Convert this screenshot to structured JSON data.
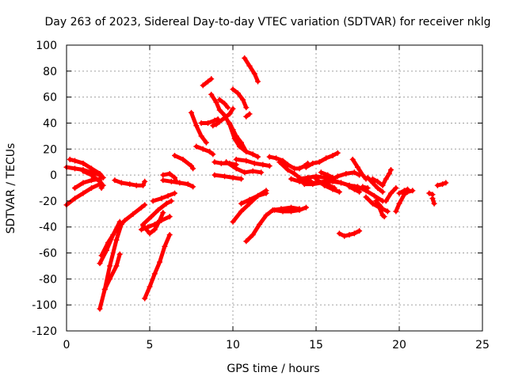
{
  "chart_data": {
    "type": "scatter",
    "title": "Day 263 of 2023, Sidereal Day-to-day VTEC variation (SDTVAR) for receiver nklg",
    "xlabel": "GPS time / hours",
    "ylabel": "SDTVAR / TECUs",
    "xlim": [
      0,
      25
    ],
    "ylim": [
      -120,
      100
    ],
    "xticks": [
      0,
      5,
      10,
      15,
      20,
      25
    ],
    "yticks": [
      -120,
      -100,
      -80,
      -60,
      -40,
      -20,
      0,
      20,
      40,
      60,
      80,
      100
    ],
    "xtick_labels": [
      "0",
      "5",
      "10",
      "15",
      "20",
      "25"
    ],
    "ytick_labels": [
      "-120",
      "-100",
      "-80",
      "-60",
      "-40",
      "-20",
      "0",
      "20",
      "40",
      "60",
      "80",
      "100"
    ],
    "grid": true,
    "legend": "none",
    "marker": "plus",
    "color": "#ff0000",
    "tracks": [
      [
        [
          0.0,
          6
        ],
        [
          0.5,
          5
        ],
        [
          1.0,
          4
        ],
        [
          1.5,
          2
        ],
        [
          2.0,
          0
        ]
      ],
      [
        [
          0.2,
          12
        ],
        [
          0.5,
          11
        ],
        [
          1.0,
          9
        ],
        [
          1.5,
          5
        ],
        [
          2.0,
          1
        ],
        [
          2.2,
          -2
        ]
      ],
      [
        [
          0.0,
          -23
        ],
        [
          0.5,
          -18
        ],
        [
          1.0,
          -14
        ],
        [
          1.5,
          -10
        ],
        [
          2.0,
          -7
        ]
      ],
      [
        [
          0.5,
          -10
        ],
        [
          1.0,
          -6
        ],
        [
          1.5,
          -4
        ],
        [
          2.0,
          -3
        ],
        [
          2.1,
          -10
        ]
      ],
      [
        [
          1.0,
          3
        ],
        [
          1.5,
          0
        ],
        [
          2.0,
          -5
        ],
        [
          2.2,
          -8
        ]
      ],
      [
        [
          2.0,
          -103
        ],
        [
          2.3,
          -88
        ],
        [
          2.6,
          -70
        ],
        [
          3.0,
          -50
        ],
        [
          3.3,
          -38
        ]
      ],
      [
        [
          2.0,
          -68
        ],
        [
          2.4,
          -58
        ],
        [
          2.8,
          -46
        ],
        [
          3.2,
          -36
        ]
      ],
      [
        [
          2.1,
          -62
        ],
        [
          2.5,
          -52
        ],
        [
          3.0,
          -42
        ],
        [
          3.5,
          -35
        ],
        [
          4.0,
          -30
        ],
        [
          4.5,
          -25
        ],
        [
          4.7,
          -23
        ]
      ],
      [
        [
          2.3,
          -88
        ],
        [
          2.6,
          -80
        ],
        [
          3.0,
          -70
        ],
        [
          3.2,
          -61
        ]
      ],
      [
        [
          2.9,
          -4
        ],
        [
          3.3,
          -6
        ],
        [
          3.8,
          -7
        ],
        [
          4.2,
          -8
        ],
        [
          4.6,
          -8
        ],
        [
          4.7,
          -5
        ]
      ],
      [
        [
          4.5,
          -42
        ],
        [
          4.9,
          -40
        ],
        [
          5.3,
          -38
        ],
        [
          5.7,
          -35
        ],
        [
          6.2,
          -32
        ]
      ],
      [
        [
          4.7,
          -95
        ],
        [
          5.0,
          -86
        ],
        [
          5.3,
          -76
        ],
        [
          5.6,
          -67
        ],
        [
          5.9,
          -55
        ],
        [
          6.2,
          -46
        ]
      ],
      [
        [
          4.6,
          -38
        ],
        [
          5.1,
          -32
        ],
        [
          5.5,
          -27
        ],
        [
          6.0,
          -22
        ],
        [
          6.3,
          -20
        ]
      ],
      [
        [
          4.6,
          -39
        ],
        [
          5.0,
          -45
        ],
        [
          5.3,
          -42
        ],
        [
          5.6,
          -35
        ],
        [
          5.8,
          -29
        ]
      ],
      [
        [
          5.2,
          -20
        ],
        [
          5.7,
          -18
        ],
        [
          6.1,
          -16
        ],
        [
          6.5,
          -14
        ]
      ],
      [
        [
          5.8,
          -4
        ],
        [
          6.3,
          -5
        ],
        [
          6.8,
          -6
        ],
        [
          7.3,
          -7
        ],
        [
          7.6,
          -9
        ]
      ],
      [
        [
          5.8,
          0
        ],
        [
          6.2,
          1
        ],
        [
          6.5,
          -2
        ],
        [
          6.6,
          -5
        ]
      ],
      [
        [
          6.5,
          15
        ],
        [
          7.0,
          12
        ],
        [
          7.5,
          7
        ],
        [
          7.6,
          5
        ]
      ],
      [
        [
          7.5,
          48
        ],
        [
          7.8,
          38
        ],
        [
          8.1,
          30
        ],
        [
          8.4,
          25
        ]
      ],
      [
        [
          7.8,
          22
        ],
        [
          8.2,
          20
        ],
        [
          8.6,
          18
        ],
        [
          8.8,
          16
        ]
      ],
      [
        [
          8.1,
          40
        ],
        [
          8.5,
          40
        ],
        [
          8.9,
          42
        ],
        [
          9.1,
          43
        ]
      ],
      [
        [
          8.2,
          69
        ],
        [
          8.5,
          72
        ],
        [
          8.7,
          74
        ]
      ],
      [
        [
          8.7,
          62
        ],
        [
          9.0,
          56
        ],
        [
          9.2,
          50
        ],
        [
          9.5,
          46
        ],
        [
          9.8,
          39
        ],
        [
          10.1,
          28
        ],
        [
          10.4,
          22
        ],
        [
          10.8,
          18
        ],
        [
          11.2,
          16
        ],
        [
          11.5,
          14
        ]
      ],
      [
        [
          8.8,
          38
        ],
        [
          9.0,
          39
        ],
        [
          9.2,
          41
        ],
        [
          9.5,
          44
        ],
        [
          9.8,
          47
        ],
        [
          10.0,
          51
        ]
      ],
      [
        [
          9.2,
          58
        ],
        [
          9.5,
          55
        ],
        [
          9.7,
          52
        ]
      ],
      [
        [
          9.8,
          40
        ],
        [
          10.0,
          35
        ],
        [
          10.2,
          30
        ],
        [
          10.5,
          25
        ],
        [
          10.8,
          18
        ]
      ],
      [
        [
          8.9,
          10
        ],
        [
          9.3,
          9
        ],
        [
          9.8,
          9
        ],
        [
          10.2,
          8
        ]
      ],
      [
        [
          8.9,
          0
        ],
        [
          9.5,
          -1
        ],
        [
          10.0,
          -2
        ],
        [
          10.5,
          -3
        ]
      ],
      [
        [
          9.6,
          10
        ],
        [
          10.2,
          5
        ],
        [
          10.7,
          2
        ],
        [
          11.2,
          3
        ],
        [
          11.7,
          2
        ]
      ],
      [
        [
          10.0,
          66
        ],
        [
          10.3,
          63
        ],
        [
          10.6,
          58
        ],
        [
          10.8,
          52
        ]
      ],
      [
        [
          10.2,
          12
        ],
        [
          10.8,
          11
        ],
        [
          11.3,
          9
        ],
        [
          11.8,
          8
        ],
        [
          12.2,
          7
        ]
      ],
      [
        [
          10.7,
          90
        ],
        [
          11.0,
          84
        ],
        [
          11.3,
          78
        ],
        [
          11.5,
          72
        ]
      ],
      [
        [
          10.8,
          45
        ],
        [
          11.0,
          47
        ]
      ],
      [
        [
          10.0,
          -36
        ],
        [
          10.5,
          -28
        ],
        [
          11.0,
          -22
        ],
        [
          11.5,
          -16
        ],
        [
          12.0,
          -12
        ]
      ],
      [
        [
          10.5,
          -22
        ],
        [
          11.0,
          -19
        ],
        [
          11.5,
          -16
        ],
        [
          12.0,
          -14
        ]
      ],
      [
        [
          10.8,
          -51
        ],
        [
          11.2,
          -46
        ],
        [
          11.6,
          -38
        ],
        [
          12.0,
          -31
        ],
        [
          12.4,
          -27
        ],
        [
          12.9,
          -26
        ],
        [
          13.5,
          -25
        ],
        [
          14.0,
          -26
        ]
      ],
      [
        [
          12.2,
          14
        ],
        [
          12.6,
          13
        ],
        [
          13.0,
          11
        ],
        [
          13.3,
          8
        ],
        [
          13.7,
          5
        ],
        [
          14.0,
          5
        ],
        [
          14.3,
          7
        ],
        [
          14.5,
          9
        ]
      ],
      [
        [
          12.8,
          10
        ],
        [
          13.3,
          4
        ],
        [
          13.7,
          1
        ],
        [
          14.0,
          -2
        ],
        [
          14.4,
          -4
        ],
        [
          14.7,
          -5
        ]
      ],
      [
        [
          12.5,
          -27
        ],
        [
          13.0,
          -28
        ],
        [
          13.5,
          -28
        ],
        [
          14.0,
          -27
        ],
        [
          14.4,
          -25
        ]
      ],
      [
        [
          13.5,
          -3
        ],
        [
          14.0,
          -5
        ],
        [
          14.5,
          -6
        ],
        [
          15.0,
          -6
        ],
        [
          15.5,
          -5
        ],
        [
          16.0,
          -5
        ],
        [
          16.5,
          -6
        ],
        [
          17.0,
          -8
        ],
        [
          17.5,
          -9
        ],
        [
          18.0,
          -12
        ],
        [
          18.5,
          -16
        ],
        [
          19.0,
          -20
        ]
      ],
      [
        [
          14.0,
          -3
        ],
        [
          14.5,
          -2
        ],
        [
          15.0,
          -1
        ],
        [
          15.5,
          -2
        ],
        [
          16.0,
          -4
        ],
        [
          16.5,
          -6
        ],
        [
          17.0,
          -8
        ],
        [
          17.3,
          -9
        ]
      ],
      [
        [
          14.3,
          -7
        ],
        [
          14.8,
          -7
        ],
        [
          15.3,
          -6
        ],
        [
          15.8,
          -4
        ],
        [
          16.3,
          -1
        ],
        [
          16.8,
          1
        ],
        [
          17.3,
          2
        ],
        [
          17.6,
          0
        ]
      ],
      [
        [
          14.4,
          6
        ],
        [
          14.8,
          9
        ],
        [
          15.2,
          10
        ],
        [
          15.6,
          13
        ],
        [
          16.0,
          15
        ],
        [
          16.3,
          17
        ]
      ],
      [
        [
          15.0,
          -3
        ],
        [
          15.5,
          -8
        ],
        [
          16.0,
          -11
        ],
        [
          16.4,
          -13
        ]
      ],
      [
        [
          15.3,
          2
        ],
        [
          15.7,
          0
        ],
        [
          16.0,
          -2
        ]
      ],
      [
        [
          15.4,
          -6
        ],
        [
          15.8,
          -8
        ],
        [
          16.1,
          -10
        ]
      ],
      [
        [
          16.4,
          -45
        ],
        [
          16.7,
          -47
        ],
        [
          17.0,
          -46
        ],
        [
          17.3,
          -45
        ],
        [
          17.6,
          -43
        ]
      ],
      [
        [
          17.2,
          12
        ],
        [
          17.5,
          6
        ],
        [
          17.8,
          0
        ],
        [
          18.0,
          -3
        ]
      ],
      [
        [
          17.0,
          -9
        ],
        [
          17.3,
          -11
        ],
        [
          17.6,
          -13
        ]
      ],
      [
        [
          17.8,
          -9
        ],
        [
          18.1,
          -10
        ]
      ],
      [
        [
          18.0,
          -17
        ],
        [
          18.4,
          -22
        ],
        [
          18.8,
          -25
        ],
        [
          19.0,
          -31
        ],
        [
          19.1,
          -32
        ]
      ],
      [
        [
          18.1,
          -2
        ],
        [
          18.4,
          -6
        ],
        [
          18.7,
          -10
        ],
        [
          19.0,
          -13
        ]
      ],
      [
        [
          18.4,
          -3
        ],
        [
          18.7,
          -5
        ],
        [
          19.0,
          -8
        ],
        [
          19.2,
          -3
        ],
        [
          19.4,
          1
        ],
        [
          19.5,
          4
        ]
      ],
      [
        [
          18.6,
          -20
        ],
        [
          18.8,
          -23
        ],
        [
          19.0,
          -26
        ],
        [
          19.3,
          -28
        ]
      ],
      [
        [
          19.2,
          -20
        ],
        [
          19.5,
          -14
        ],
        [
          19.8,
          -10
        ]
      ],
      [
        [
          19.8,
          -28
        ],
        [
          20.0,
          -22
        ],
        [
          20.3,
          -15
        ],
        [
          20.5,
          -13
        ],
        [
          20.8,
          -12
        ]
      ],
      [
        [
          20.0,
          -14
        ],
        [
          20.3,
          -12
        ],
        [
          20.5,
          -11
        ]
      ],
      [
        [
          21.8,
          -14
        ],
        [
          22.0,
          -15
        ]
      ],
      [
        [
          22.0,
          -18
        ],
        [
          22.1,
          -22
        ]
      ],
      [
        [
          22.3,
          -8
        ],
        [
          22.6,
          -7
        ],
        [
          22.8,
          -6
        ]
      ]
    ]
  }
}
